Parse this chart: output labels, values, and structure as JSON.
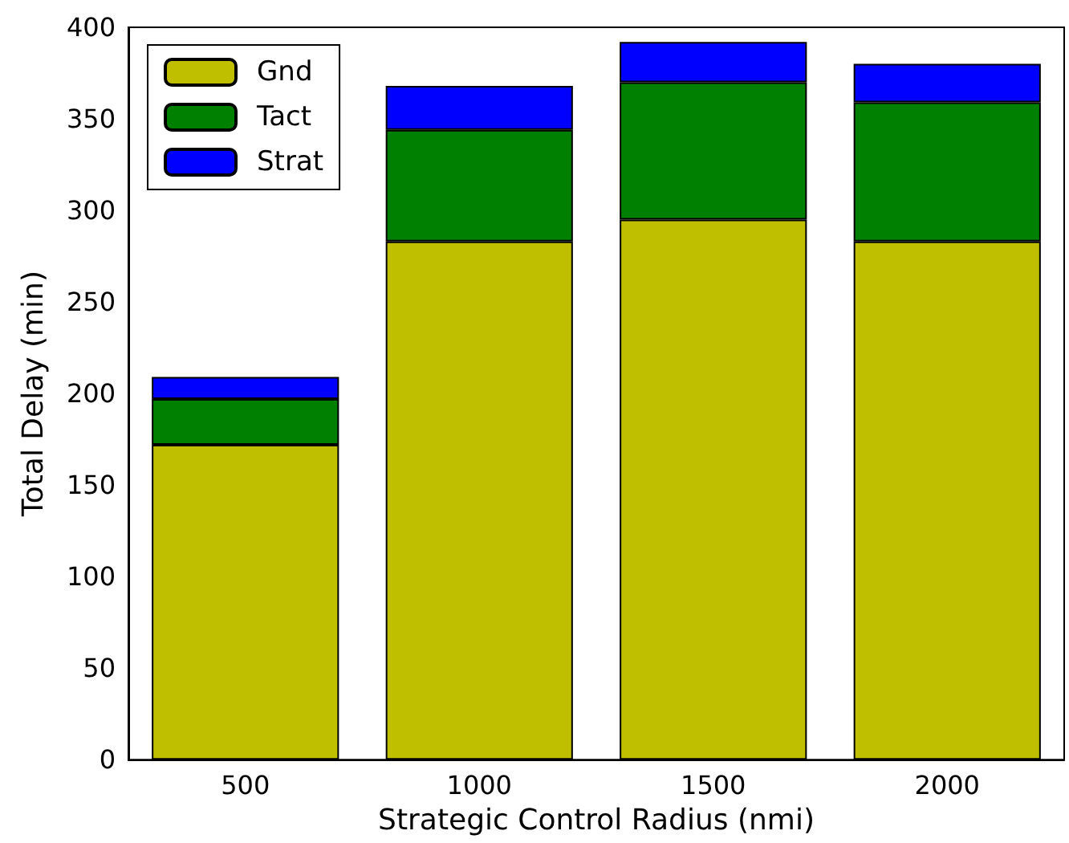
{
  "chart_data": {
    "type": "bar",
    "xlabel": "Strategic Control Radius (nmi)",
    "ylabel": "Total Delay (min)",
    "categories": [
      "500",
      "1000",
      "1500",
      "2000"
    ],
    "stacked": true,
    "series": [
      {
        "name": "Gnd",
        "color": "#bfbf00",
        "values": [
          172,
          283,
          295,
          283
        ]
      },
      {
        "name": "Tact",
        "color": "#008000",
        "values": [
          25,
          61,
          75,
          76
        ]
      },
      {
        "name": "Strat",
        "color": "#0000ff",
        "values": [
          12,
          24,
          22,
          21
        ]
      }
    ],
    "ylim": [
      0,
      400
    ],
    "yticks": [
      0,
      50,
      100,
      150,
      200,
      250,
      300,
      350,
      400
    ],
    "grid": false,
    "legend": "top left"
  }
}
